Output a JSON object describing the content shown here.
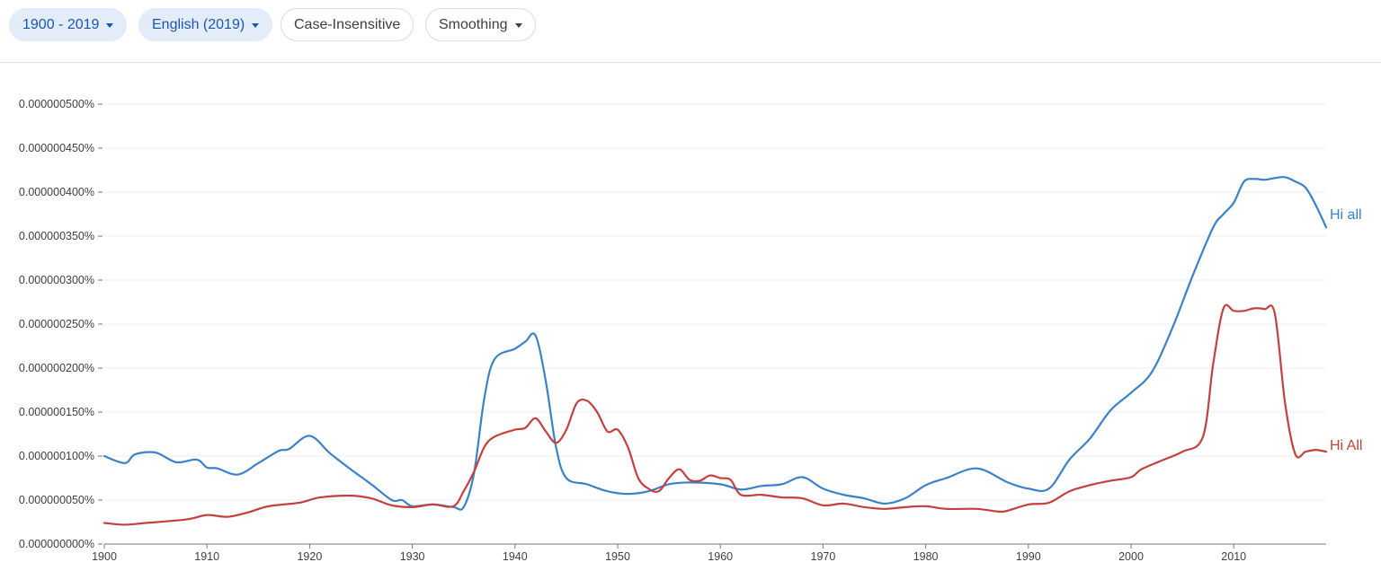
{
  "toolbar": {
    "range_label": "1900 - 2019",
    "corpus_label": "English (2019)",
    "case_label": "Case-Insensitive",
    "smoothing_label": "Smoothing"
  },
  "colors": {
    "hi_all": "#3a82c8",
    "hi_All": "#c3403e",
    "grid": "#eeeeee",
    "axis": "#777777"
  },
  "chart_data": {
    "type": "line",
    "title": "",
    "xlabel": "",
    "ylabel": "",
    "xlim": [
      1900,
      2019
    ],
    "ylim": [
      0,
      5e-07
    ],
    "x_ticks": [
      1900,
      1910,
      1920,
      1930,
      1940,
      1950,
      1960,
      1970,
      1980,
      1990,
      2000,
      2010
    ],
    "x_tick_labels": [
      "1900",
      "1910",
      "1920",
      "1930",
      "1940",
      "1950",
      "1960",
      "1970",
      "1980",
      "1990",
      "2000",
      "2010"
    ],
    "y_ticks": [
      0,
      5e-08,
      1e-07,
      1.5e-07,
      2e-07,
      2.5e-07,
      3e-07,
      3.5e-07,
      4e-07,
      4.5e-07,
      5e-07
    ],
    "y_tick_labels": [
      "0.000000000%",
      "0.000000050%",
      "0.000000100%",
      "0.000000150%",
      "0.000000200%",
      "0.000000250%",
      "0.000000300%",
      "0.000000350%",
      "0.000000400%",
      "0.000000450%",
      "0.000000500%"
    ],
    "grid": true,
    "series": [
      {
        "name": "Hi all",
        "color": "#3a82c8",
        "x": [
          1900,
          1902,
          1903,
          1905,
          1907,
          1909,
          1910,
          1911,
          1913,
          1915,
          1917,
          1918,
          1920,
          1922,
          1924,
          1926,
          1928,
          1929,
          1930,
          1932,
          1934,
          1935,
          1936,
          1937,
          1938,
          1940,
          1941,
          1942,
          1943,
          1944,
          1945,
          1947,
          1949,
          1951,
          1953,
          1955,
          1957,
          1960,
          1962,
          1964,
          1966,
          1968,
          1970,
          1972,
          1974,
          1976,
          1978,
          1980,
          1982,
          1985,
          1988,
          1990,
          1992,
          1994,
          1996,
          1998,
          2000,
          2002,
          2004,
          2006,
          2008,
          2009,
          2010,
          2011,
          2012,
          2013,
          2014,
          2015,
          2016,
          2017,
          2018,
          2019
        ],
        "y": [
          1e-07,
          9.2e-08,
          1.02e-07,
          1.04e-07,
          9.3e-08,
          9.6e-08,
          8.7e-08,
          8.6e-08,
          7.9e-08,
          9.2e-08,
          1.06e-07,
          1.08e-07,
          1.23e-07,
          1.03e-07,
          8.5e-08,
          6.8e-08,
          5e-08,
          5e-08,
          4.3e-08,
          4.5e-08,
          4.2e-08,
          4.2e-08,
          8e-08,
          1.65e-07,
          2.1e-07,
          2.22e-07,
          2.3e-07,
          2.37e-07,
          1.85e-07,
          1.1e-07,
          7.5e-08,
          6.8e-08,
          6e-08,
          5.7e-08,
          6e-08,
          6.8e-08,
          7e-08,
          6.8e-08,
          6.2e-08,
          6.6e-08,
          6.8e-08,
          7.6e-08,
          6.3e-08,
          5.6e-08,
          5.2e-08,
          4.6e-08,
          5.2e-08,
          6.7e-08,
          7.5e-08,
          8.6e-08,
          7e-08,
          6.3e-08,
          6.3e-08,
          9.6e-08,
          1.2e-07,
          1.52e-07,
          1.72e-07,
          1.95e-07,
          2.45e-07,
          3.05e-07,
          3.6e-07,
          3.75e-07,
          3.88e-07,
          4.12e-07,
          4.15e-07,
          4.14e-07,
          4.16e-07,
          4.17e-07,
          4.12e-07,
          4.05e-07,
          3.85e-07,
          3.6e-07
        ]
      },
      {
        "name": "Hi All",
        "color": "#c3403e",
        "x": [
          1900,
          1902,
          1904,
          1908,
          1910,
          1912,
          1914,
          1916,
          1919,
          1921,
          1924,
          1926,
          1928,
          1930,
          1932,
          1934,
          1935,
          1936,
          1937,
          1938,
          1940,
          1941,
          1942,
          1943,
          1944,
          1945,
          1946,
          1947,
          1948,
          1949,
          1950,
          1951,
          1952,
          1953,
          1954,
          1955,
          1956,
          1957,
          1958,
          1959,
          1960,
          1961,
          1962,
          1964,
          1966,
          1968,
          1970,
          1972,
          1974,
          1976,
          1978,
          1980,
          1982,
          1985,
          1987,
          1988,
          1990,
          1992,
          1994,
          1996,
          1998,
          2000,
          2001,
          2003,
          2005,
          2007,
          2008,
          2009,
          2010,
          2011,
          2012,
          2013,
          2014,
          2015,
          2016,
          2017,
          2018,
          2019
        ],
        "y": [
          2.4e-08,
          2.2e-08,
          2.4e-08,
          2.8e-08,
          3.3e-08,
          3.1e-08,
          3.6e-08,
          4.3e-08,
          4.7e-08,
          5.3e-08,
          5.5e-08,
          5.2e-08,
          4.4e-08,
          4.2e-08,
          4.5e-08,
          4.3e-08,
          6e-08,
          8.2e-08,
          1.1e-07,
          1.22e-07,
          1.3e-07,
          1.32e-07,
          1.43e-07,
          1.28e-07,
          1.15e-07,
          1.3e-07,
          1.6e-07,
          1.63e-07,
          1.5e-07,
          1.28e-07,
          1.3e-07,
          1.1e-07,
          7.5e-08,
          6.3e-08,
          6e-08,
          7.5e-08,
          8.5e-08,
          7.3e-08,
          7.2e-08,
          7.8e-08,
          7.5e-08,
          7.3e-08,
          5.6e-08,
          5.6e-08,
          5.3e-08,
          5.2e-08,
          4.4e-08,
          4.6e-08,
          4.2e-08,
          4e-08,
          4.2e-08,
          4.3e-08,
          4e-08,
          4e-08,
          3.7e-08,
          3.8e-08,
          4.5e-08,
          4.7e-08,
          6e-08,
          6.7e-08,
          7.2e-08,
          7.6e-08,
          8.5e-08,
          9.5e-08,
          1.05e-07,
          1.22e-07,
          2.05e-07,
          2.68e-07,
          2.65e-07,
          2.65e-07,
          2.68e-07,
          2.67e-07,
          2.62e-07,
          1.6e-07,
          1.02e-07,
          1.05e-07,
          1.07e-07,
          1.05e-07
        ]
      }
    ]
  }
}
